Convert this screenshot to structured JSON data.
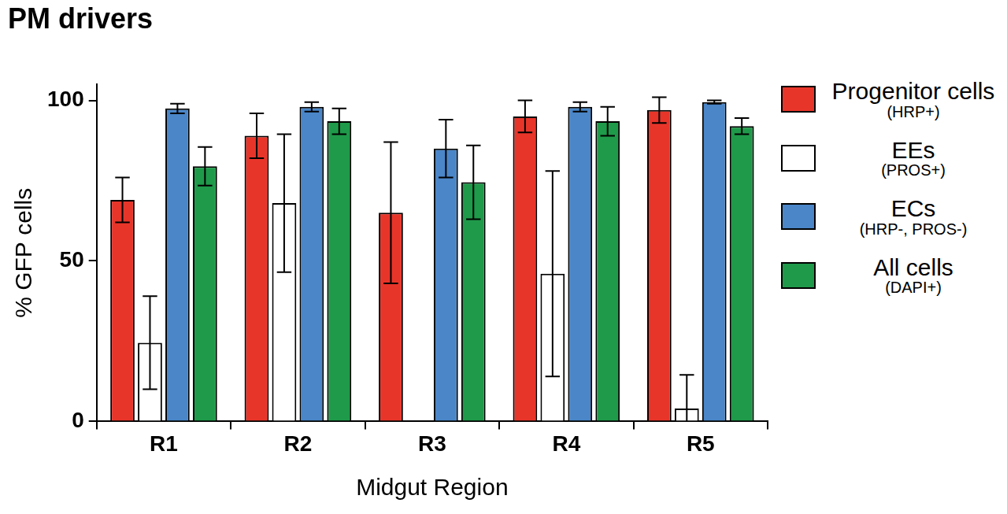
{
  "chart_data": {
    "type": "bar",
    "title": "PM drivers",
    "x_label": "Midgut Region",
    "y_label": "% GFP cells",
    "categories": [
      "R1",
      "R2",
      "R3",
      "R4",
      "R5"
    ],
    "series": [
      {
        "name": "Progenitor cells (HRP+)",
        "color": "#e8352a",
        "values": [
          69,
          89,
          65,
          95,
          97
        ],
        "error": [
          7,
          7,
          22,
          5,
          4
        ]
      },
      {
        "name": "EEs (PROS+)",
        "color": "#ffffff",
        "values": [
          24.5,
          68,
          null,
          46,
          4
        ],
        "error": [
          14.5,
          21.5,
          null,
          32,
          10.5
        ]
      },
      {
        "name": "ECs (HRP-, PROS-)",
        "color": "#4a86c8",
        "values": [
          97.5,
          98,
          85,
          98,
          99.5
        ],
        "error": [
          1.5,
          1.5,
          9,
          1.5,
          0.5
        ]
      },
      {
        "name": "All cells (DAPI+)",
        "color": "#1f9a4a",
        "values": [
          79.5,
          93.5,
          74.5,
          93.5,
          92
        ],
        "error": [
          6,
          4,
          11.5,
          4.5,
          2.5
        ]
      }
    ],
    "ylim": [
      0,
      105
    ],
    "yticks": [
      0,
      50,
      100
    ],
    "grid": false,
    "legend": "right"
  }
}
